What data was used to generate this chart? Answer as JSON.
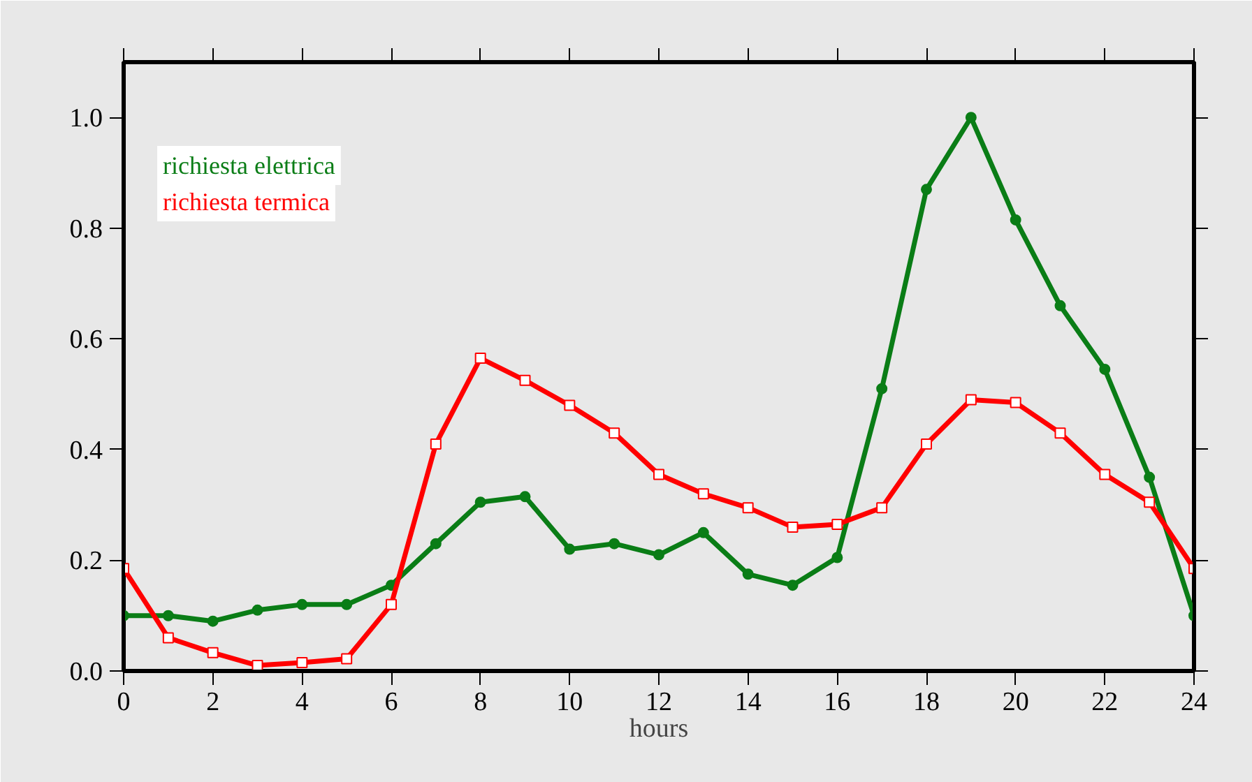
{
  "chart_data": {
    "type": "line",
    "xlabel": "hours",
    "x": [
      0,
      1,
      2,
      3,
      4,
      5,
      6,
      7,
      8,
      9,
      10,
      11,
      12,
      13,
      14,
      15,
      16,
      17,
      18,
      19,
      20,
      21,
      22,
      23,
      24
    ],
    "series": [
      {
        "name": "richiesta elettrica",
        "color": "#0a7d16",
        "marker": "circle",
        "values": [
          0.1,
          0.1,
          0.09,
          0.11,
          0.12,
          0.12,
          0.155,
          0.23,
          0.305,
          0.315,
          0.22,
          0.23,
          0.21,
          0.25,
          0.175,
          0.155,
          0.205,
          0.51,
          0.87,
          1.0,
          0.815,
          0.66,
          0.545,
          0.35,
          0.1
        ]
      },
      {
        "name": "richiesta termica",
        "color": "#ff0000",
        "marker": "square",
        "values": [
          0.185,
          0.06,
          0.033,
          0.01,
          0.015,
          0.022,
          0.12,
          0.41,
          0.565,
          0.525,
          0.48,
          0.43,
          0.355,
          0.32,
          0.295,
          0.26,
          0.265,
          0.295,
          0.41,
          0.49,
          0.485,
          0.43,
          0.355,
          0.305,
          0.185
        ]
      }
    ],
    "xlim": [
      0,
      24
    ],
    "ylim": [
      0,
      1.1
    ],
    "xticks": [
      0,
      2,
      4,
      6,
      8,
      10,
      12,
      14,
      16,
      18,
      20,
      22,
      24
    ],
    "yticks": [
      {
        "value": 0,
        "label": "0.0"
      },
      {
        "value": 0.2,
        "label": "0.2"
      },
      {
        "value": 0.4,
        "label": "0.4"
      },
      {
        "value": 0.6,
        "label": "0.6"
      },
      {
        "value": 0.8,
        "label": "0.8"
      },
      {
        "value": 1.0,
        "label": "1.0"
      }
    ],
    "legend": "top left",
    "grid": false,
    "line_style": "solid"
  }
}
